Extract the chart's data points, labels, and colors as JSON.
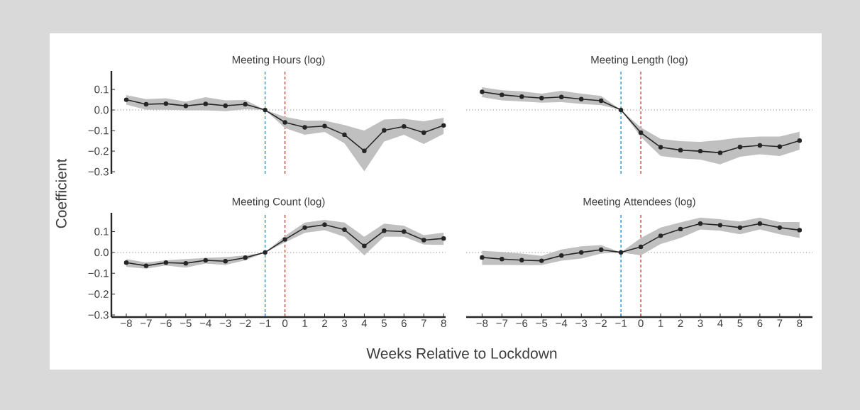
{
  "chart_data": [
    {
      "type": "line",
      "title": "Meeting Hours (log)",
      "ylabel": "Coefficient",
      "marker": "circle",
      "tick_labels": "y",
      "xlim": [
        -8.75,
        8.1
      ],
      "ylim": [
        -0.31,
        0.19
      ],
      "yticks": [
        {
          "value": 0.1,
          "label": "0.1"
        },
        {
          "value": 0.0,
          "label": "0.0"
        },
        {
          "value": -0.1,
          "label": "−0.1"
        },
        {
          "value": -0.2,
          "label": "−0.2"
        },
        {
          "value": -0.3,
          "label": "−0.3"
        }
      ],
      "x": [
        -8,
        -7,
        -6,
        -5,
        -4,
        -3,
        -2,
        -1,
        0,
        1,
        2,
        3,
        4,
        5,
        6,
        7,
        8
      ],
      "series": [
        {
          "color": "#262626",
          "values": [
            0.05,
            0.028,
            0.031,
            0.02,
            0.03,
            0.021,
            0.028,
            0,
            -0.06,
            -0.084,
            -0.078,
            -0.12,
            -0.199,
            -0.099,
            -0.08,
            -0.11,
            -0.075
          ],
          "lower": [
            0.026,
            0.001,
            0.001,
            -0.001,
            -0.001,
            -0.006,
            0.004,
            0,
            -0.088,
            -0.12,
            -0.107,
            -0.162,
            -0.298,
            -0.153,
            -0.12,
            -0.165,
            -0.116
          ],
          "upper": [
            0.073,
            0.053,
            0.057,
            0.041,
            0.062,
            0.047,
            0.049,
            0,
            -0.033,
            -0.051,
            -0.051,
            -0.073,
            -0.1,
            -0.046,
            -0.043,
            -0.055,
            -0.038
          ]
        }
      ],
      "ref_lines": [
        {
          "axis": "x",
          "value": -1,
          "color": "#3399d6",
          "line_style": "dashed"
        },
        {
          "axis": "x",
          "value": 0,
          "color": "#e8453c",
          "line_style": "dashed"
        },
        {
          "axis": "y",
          "value": 0,
          "color": "#b0b0b0",
          "line_style": "dotted"
        }
      ]
    },
    {
      "type": "line",
      "title": "Meeting Length (log)",
      "marker": "circle",
      "tick_labels": false,
      "xlim": [
        -8.8,
        8.65
      ],
      "ylim": [
        -0.31,
        0.19
      ],
      "x": [
        -8,
        -7,
        -6,
        -5,
        -4,
        -3,
        -2,
        -1,
        0,
        1,
        2,
        3,
        4,
        5,
        6,
        7,
        8
      ],
      "series": [
        {
          "color": "#262626",
          "values": [
            0.088,
            0.074,
            0.065,
            0.058,
            0.063,
            0.053,
            0.045,
            0,
            -0.11,
            -0.181,
            -0.195,
            -0.2,
            -0.208,
            -0.18,
            -0.172,
            -0.178,
            -0.149
          ],
          "lower": [
            0.062,
            0.047,
            0.042,
            0.036,
            0.038,
            0.03,
            0.024,
            0,
            -0.131,
            -0.224,
            -0.235,
            -0.241,
            -0.264,
            -0.227,
            -0.215,
            -0.224,
            -0.193
          ],
          "upper": [
            0.111,
            0.096,
            0.091,
            0.08,
            0.093,
            0.08,
            0.068,
            0,
            -0.085,
            -0.14,
            -0.151,
            -0.155,
            -0.146,
            -0.134,
            -0.129,
            -0.129,
            -0.106
          ]
        }
      ],
      "ref_lines": [
        {
          "axis": "x",
          "value": -1,
          "color": "#3399d6",
          "line_style": "dashed"
        },
        {
          "axis": "x",
          "value": 0,
          "color": "#e8453c",
          "line_style": "dashed"
        },
        {
          "axis": "y",
          "value": 0,
          "color": "#b0b0b0",
          "line_style": "dotted"
        }
      ]
    },
    {
      "type": "line",
      "title": "Meeting Count (log)",
      "xlabel": "Weeks Relative to Lockdown",
      "marker": "circle",
      "xlim": [
        -8.75,
        8.1
      ],
      "ylim": [
        -0.31,
        0.19
      ],
      "xticks": [
        {
          "value": -8,
          "label": "−8"
        },
        {
          "value": -7,
          "label": "−7"
        },
        {
          "value": -6,
          "label": "−6"
        },
        {
          "value": -5,
          "label": "−5"
        },
        {
          "value": -4,
          "label": "−4"
        },
        {
          "value": -3,
          "label": "−3"
        },
        {
          "value": -2,
          "label": "−2"
        },
        {
          "value": -1,
          "label": "−1"
        },
        0,
        1,
        2,
        3,
        4,
        5,
        6,
        7,
        8
      ],
      "yticks": [
        {
          "value": 0.1,
          "label": "0.1"
        },
        {
          "value": 0.0,
          "label": "0.0"
        },
        {
          "value": -0.1,
          "label": "−0.1"
        },
        {
          "value": -0.2,
          "label": "−0.2"
        },
        {
          "value": -0.3,
          "label": "−0.3"
        }
      ],
      "x": [
        -8,
        -7,
        -6,
        -5,
        -4,
        -3,
        -2,
        -1,
        0,
        1,
        2,
        3,
        4,
        5,
        6,
        7,
        8
      ],
      "series": [
        {
          "color": "#262626",
          "values": [
            -0.049,
            -0.064,
            -0.049,
            -0.052,
            -0.038,
            -0.042,
            -0.025,
            0,
            0.062,
            0.119,
            0.133,
            0.109,
            0.031,
            0.104,
            0.1,
            0.059,
            0.067
          ],
          "lower": [
            -0.069,
            -0.078,
            -0.063,
            -0.073,
            -0.053,
            -0.06,
            -0.038,
            0,
            0.048,
            0.094,
            0.107,
            0.075,
            -0.014,
            0.075,
            0.075,
            0.038,
            0.036
          ],
          "upper": [
            -0.032,
            -0.048,
            -0.038,
            -0.032,
            -0.026,
            -0.023,
            -0.014,
            0,
            0.079,
            0.143,
            0.156,
            0.143,
            0.075,
            0.138,
            0.128,
            0.083,
            0.095
          ]
        }
      ],
      "ref_lines": [
        {
          "axis": "x",
          "value": -1,
          "color": "#3399d6",
          "line_style": "dashed"
        },
        {
          "axis": "x",
          "value": 0,
          "color": "#e8453c",
          "line_style": "dashed"
        },
        {
          "axis": "y",
          "value": 0,
          "color": "#b0b0b0",
          "line_style": "dotted"
        }
      ]
    },
    {
      "type": "line",
      "title": "Meeting Attendees (log)",
      "marker": "circle",
      "tick_labels": "x",
      "xlim": [
        -8.8,
        8.65
      ],
      "ylim": [
        -0.31,
        0.19
      ],
      "xticks": [
        {
          "value": -8,
          "label": "−8"
        },
        {
          "value": -7,
          "label": "−7"
        },
        {
          "value": -6,
          "label": "−6"
        },
        {
          "value": -5,
          "label": "−5"
        },
        {
          "value": -4,
          "label": "−4"
        },
        {
          "value": -3,
          "label": "−3"
        },
        {
          "value": -2,
          "label": "−2"
        },
        {
          "value": -1,
          "label": "−1"
        },
        0,
        1,
        2,
        3,
        4,
        5,
        6,
        7,
        8
      ],
      "x": [
        -8,
        -7,
        -6,
        -5,
        -4,
        -3,
        -2,
        -1,
        0,
        1,
        2,
        3,
        4,
        5,
        6,
        7,
        8
      ],
      "series": [
        {
          "color": "#262626",
          "values": [
            -0.024,
            -0.032,
            -0.037,
            -0.04,
            -0.015,
            0.0,
            0.013,
            0,
            0.027,
            0.08,
            0.112,
            0.138,
            0.131,
            0.119,
            0.138,
            0.119,
            0.107
          ],
          "lower": [
            -0.06,
            -0.06,
            -0.061,
            -0.061,
            -0.04,
            -0.029,
            -0.006,
            0,
            -0.014,
            0.04,
            0.069,
            0.11,
            0.104,
            0.087,
            0.11,
            0.087,
            0.069
          ],
          "upper": [
            0.008,
            0.002,
            -0.006,
            -0.017,
            0.014,
            0.029,
            0.035,
            0,
            0.069,
            0.119,
            0.144,
            0.167,
            0.159,
            0.148,
            0.167,
            0.146,
            0.146
          ]
        }
      ],
      "ref_lines": [
        {
          "axis": "x",
          "value": -1,
          "color": "#3399d6",
          "line_style": "dashed"
        },
        {
          "axis": "x",
          "value": 0,
          "color": "#e8453c",
          "line_style": "dashed"
        },
        {
          "axis": "y",
          "value": 0,
          "color": "#b0b0b0",
          "line_style": "dotted"
        }
      ]
    }
  ]
}
